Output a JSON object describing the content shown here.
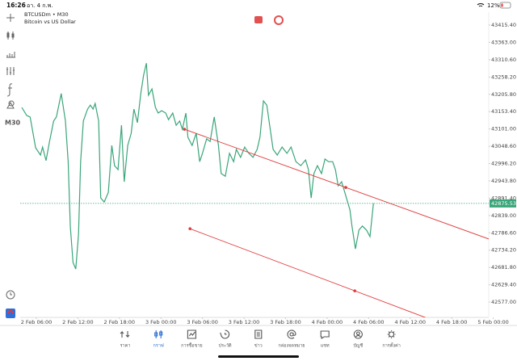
{
  "status_bar": {
    "time": "16:26",
    "date": "อา. 4 ก.พ.",
    "battery": "12%"
  },
  "sidebar": {
    "timeframe": "M30"
  },
  "chart_data": {
    "type": "line",
    "title": "BTCUSDm • M30",
    "subtitle": "Bitcoin vs US Dollar",
    "color": "#3aa57a",
    "grid": false,
    "x": [
      3.9,
      4.6,
      5.1,
      5.9,
      6.6,
      6.9,
      7.4,
      7.9,
      8.5,
      8.9,
      9.6,
      10.2,
      10.6,
      10.9,
      11.3,
      11.7,
      12.1,
      12.4,
      12.8,
      13.4,
      13.8,
      14.2,
      14.5,
      15,
      15.3,
      15.8,
      16.4,
      16.9,
      17.3,
      17.8,
      18.3,
      18.7,
      19.2,
      19.7,
      20.1,
      20.6,
      21.1,
      21.5,
      21.9,
      22.2,
      22.7,
      23.2,
      23.6,
      24.1,
      24.7,
      25.1,
      25.7,
      26.2,
      26.7,
      27.1,
      27.6,
      27.9,
      28.5,
      29.1,
      29.6,
      30,
      30.6,
      31.1,
      31.7,
      32.3,
      32.7,
      33.3,
      33.9,
      34.5,
      34.9,
      35.5,
      36.1,
      36.7,
      37.3,
      37.9,
      38.3,
      38.8,
      39.3,
      39.7,
      40.2,
      40.8,
      41.5,
      42.2,
      42.8,
      43.5,
      44.2,
      44.9,
      45.3,
      45.7,
      46.1,
      46.6,
      47.2,
      47.7,
      48.2,
      48.8,
      49.2,
      49.6,
      50.1,
      50.8,
      51.3,
      51.6,
      52.1,
      52.6,
      53.1,
      53.7,
      54.2,
      54.7
    ],
    "values": [
      43166,
      43142,
      43137,
      43044,
      43022,
      43046,
      43005,
      43063,
      43125,
      43137,
      43208,
      43125,
      43002,
      42807,
      42697,
      42677,
      42782,
      43002,
      43125,
      43161,
      43173,
      43161,
      43178,
      43125,
      42892,
      42880,
      42909,
      43051,
      42990,
      42978,
      43112,
      42941,
      43051,
      43088,
      43161,
      43120,
      43210,
      43264,
      43300,
      43203,
      43222,
      43166,
      43149,
      43156,
      43149,
      43129,
      43149,
      43112,
      43125,
      43100,
      43149,
      43076,
      43051,
      43088,
      43002,
      43027,
      43071,
      43063,
      43137,
      43051,
      42966,
      42958,
      43027,
      43002,
      43039,
      43015,
      43046,
      43027,
      43015,
      43039,
      43076,
      43186,
      43173,
      43112,
      43039,
      43022,
      43046,
      43027,
      43046,
      43002,
      42990,
      43007,
      42978,
      42892,
      42966,
      42990,
      42966,
      43010,
      43002,
      43002,
      42978,
      42929,
      42941,
      42892,
      42856,
      42807,
      42738,
      42795,
      42807,
      42795,
      42775,
      42876
    ],
    "xlim": [
      3.67,
      71.35
    ],
    "ylim": [
      42530.7,
      43454.5
    ],
    "xticks": [
      {
        "value": 6,
        "label": "2 Feb 06:00"
      },
      {
        "value": 12,
        "label": "2 Feb 12:00"
      },
      {
        "value": 18,
        "label": "2 Feb 18:00"
      },
      {
        "value": 24,
        "label": "3 Feb 00:00"
      },
      {
        "value": 30,
        "label": "3 Feb 06:00"
      },
      {
        "value": 36,
        "label": "3 Feb 12:00"
      },
      {
        "value": 42,
        "label": "3 Feb 18:00"
      },
      {
        "value": 48,
        "label": "4 Feb 00:00"
      },
      {
        "value": 54,
        "label": "4 Feb 06:00"
      },
      {
        "value": 60,
        "label": "4 Feb 12:00"
      },
      {
        "value": 66,
        "label": "4 Feb 18:00"
      },
      {
        "value": 72,
        "label": "5 Feb 00:00"
      }
    ],
    "yticks": [
      {
        "value": 43415.4,
        "label": "43415.40"
      },
      {
        "value": 43363,
        "label": "43363.00"
      },
      {
        "value": 43310.6,
        "label": "43310.60"
      },
      {
        "value": 43258.2,
        "label": "43258.20"
      },
      {
        "value": 43205.8,
        "label": "43205.80"
      },
      {
        "value": 43153.4,
        "label": "43153.40"
      },
      {
        "value": 43101,
        "label": "43101.00"
      },
      {
        "value": 43048.6,
        "label": "43048.60"
      },
      {
        "value": 42996.2,
        "label": "42996.20"
      },
      {
        "value": 42943.8,
        "label": "42943.80"
      },
      {
        "value": 42891.4,
        "label": "42891.40"
      },
      {
        "value": 42839,
        "label": "42839.00"
      },
      {
        "value": 42786.6,
        "label": "42786.60"
      },
      {
        "value": 42734.2,
        "label": "42734.20"
      },
      {
        "value": 42681.8,
        "label": "42681.80"
      },
      {
        "value": 42629.4,
        "label": "42629.40"
      },
      {
        "value": 42577,
        "label": "42577.00"
      }
    ],
    "price_line": {
      "value": 42875.53,
      "label": "42875.53",
      "color": "#3aa57a"
    },
    "trendlines": [
      {
        "color": "#e03a3a",
        "points": [
          [
            27.4,
            43100
          ],
          [
            50.7,
            42924
          ]
        ]
      },
      {
        "color": "#e03a3a",
        "points": [
          [
            28.2,
            42799
          ],
          [
            52,
            42611
          ]
        ]
      }
    ]
  },
  "nav": {
    "active": 1,
    "active_color": "#2f6fd6",
    "items": [
      "ราคา",
      "กราฟ",
      "การซื้อขาย",
      "ประวัติ",
      "ข่าว",
      "กล่องจดหมาย",
      "แชท",
      "บัญชี",
      "การตั้งค่า"
    ]
  }
}
